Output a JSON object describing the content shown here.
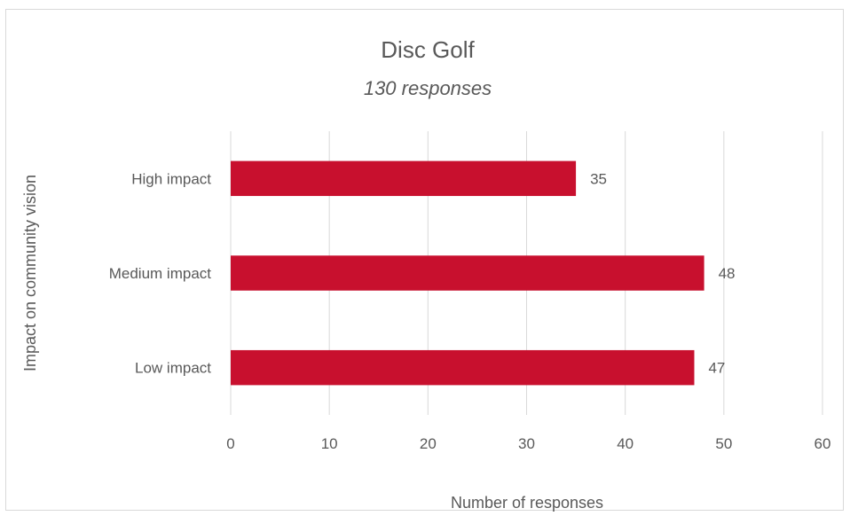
{
  "chart_data": {
    "type": "bar",
    "orientation": "horizontal",
    "title": "Disc Golf",
    "subtitle": "130 responses",
    "xlabel": "Number of responses",
    "ylabel": "Impact on community vision",
    "categories": [
      "High impact",
      "Medium impact",
      "Low impact"
    ],
    "values": [
      35,
      48,
      47
    ],
    "data_labels": [
      "35",
      "48",
      "47"
    ],
    "xlim": [
      0,
      60
    ],
    "xticks": [
      0,
      10,
      20,
      30,
      40,
      50,
      60
    ],
    "xtick_labels": [
      "0",
      "10",
      "20",
      "30",
      "40",
      "50",
      "60"
    ],
    "grid": "vertical",
    "legend": "none",
    "bar_color": "#c8102e"
  }
}
